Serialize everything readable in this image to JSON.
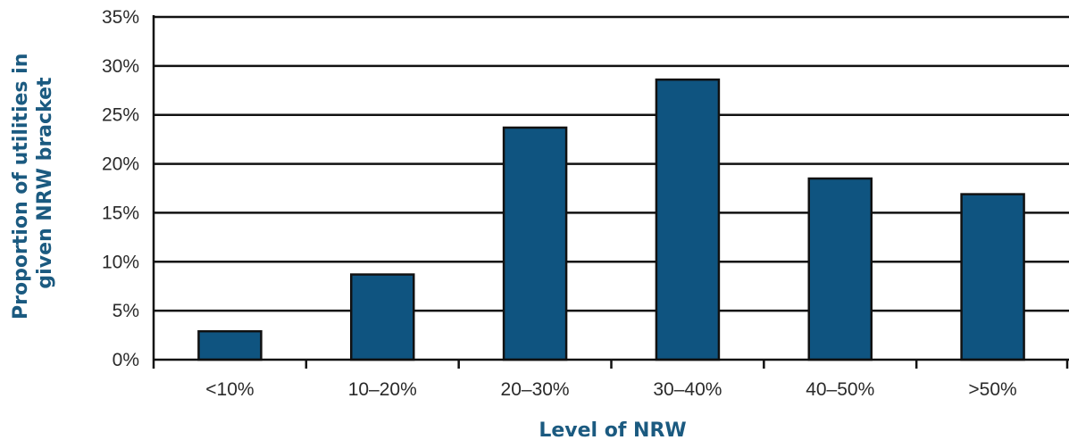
{
  "chart_data": {
    "type": "bar",
    "categories": [
      "<10%",
      "10–20%",
      "20–30%",
      "30–40%",
      "40–50%",
      ">50%"
    ],
    "values": [
      2.9,
      8.7,
      23.7,
      28.6,
      18.5,
      16.9
    ],
    "xlabel": "Level of NRW",
    "ylabel_lines": [
      "Proportion of utilities in",
      "given NRW bracket"
    ],
    "ylim": [
      0,
      35
    ],
    "yticks": [
      0,
      5,
      10,
      15,
      20,
      25,
      30,
      35
    ],
    "ytick_labels": [
      "0%",
      "5%",
      "10%",
      "15%",
      "20%",
      "25%",
      "30%",
      "35%"
    ],
    "grid": true,
    "legend": "none",
    "colors": {
      "bar": "#0f5480",
      "axis_title": "#1b5a80"
    }
  }
}
